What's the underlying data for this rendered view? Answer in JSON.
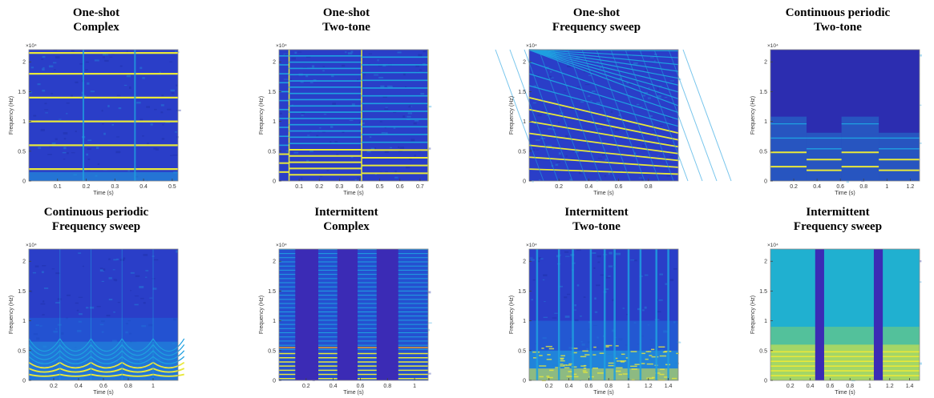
{
  "chart_data": [
    {
      "type": "heatmap",
      "title_lines": [
        "One-shot",
        "Complex"
      ],
      "xlabel": "Time (s)",
      "ylabel": "Frequency (Hz)",
      "y_exponent": "×10⁴",
      "xlim": [
        0,
        0.52
      ],
      "ylim": [
        0,
        22050
      ],
      "x_ticks": [
        0.1,
        0.2,
        0.3,
        0.4,
        0.5
      ],
      "x_tick_labels": [
        "0.1",
        "0.2",
        "0.3",
        "0.4",
        "0.5"
      ],
      "y_ticks": [
        0,
        5000,
        10000,
        15000,
        20000
      ],
      "y_tick_labels": [
        "0",
        "0.5",
        "1",
        "1.5",
        "2"
      ],
      "pattern": "harmonics",
      "harmonics_hz": [
        2000,
        6000,
        10000,
        14000,
        18000,
        21500
      ],
      "onsets_s": [
        0.19,
        0.37
      ]
    },
    {
      "type": "heatmap",
      "title_lines": [
        "One-shot",
        "Two-tone"
      ],
      "xlabel": "Time (s)",
      "ylabel": "Frequency (Hz)",
      "y_exponent": "×10⁴",
      "xlim": [
        0,
        0.74
      ],
      "ylim": [
        0,
        22050
      ],
      "x_ticks": [
        0.1,
        0.2,
        0.3,
        0.4,
        0.5,
        0.6,
        0.7
      ],
      "x_tick_labels": [
        "0.1",
        "0.2",
        "0.3",
        "0.4",
        "0.5",
        "0.6",
        "0.7"
      ],
      "y_ticks": [
        0,
        5000,
        10000,
        15000,
        20000
      ],
      "y_tick_labels": [
        "0",
        "0.5",
        "1",
        "1.5",
        "2"
      ],
      "pattern": "twotone",
      "segment_bounds_s": [
        0,
        0.05,
        0.41,
        0.74
      ],
      "fundamentals_hz": [
        1500,
        1050,
        1300
      ]
    },
    {
      "type": "heatmap",
      "title_lines": [
        "One-shot",
        "Frequency sweep"
      ],
      "xlabel": "Time (s)",
      "ylabel": "Frequency (Hz)",
      "y_exponent": "×10⁴",
      "xlim": [
        0,
        1.0
      ],
      "ylim": [
        0,
        22050
      ],
      "x_ticks": [
        0.2,
        0.4,
        0.6,
        0.8
      ],
      "x_tick_labels": [
        "0.2",
        "0.4",
        "0.6",
        "0.8"
      ],
      "y_ticks": [
        0,
        5000,
        10000,
        15000,
        20000
      ],
      "y_tick_labels": [
        "0",
        "0.5",
        "1",
        "1.5",
        "2"
      ],
      "pattern": "sweep",
      "sweep_fundamental_hz": [
        2000,
        1150
      ]
    },
    {
      "type": "heatmap",
      "title_lines": [
        "Continuous periodic",
        "Two-tone"
      ],
      "xlabel": "Time (s)",
      "ylabel": "Frequency (Hz)",
      "y_exponent": "×10⁴",
      "xlim": [
        0,
        1.28
      ],
      "ylim": [
        0,
        22050
      ],
      "x_ticks": [
        0.2,
        0.4,
        0.6,
        0.8,
        1,
        1.2
      ],
      "x_tick_labels": [
        "0.2",
        "0.4",
        "0.6",
        "0.8",
        "1",
        "1.2"
      ],
      "y_ticks": [
        0,
        5000,
        10000,
        15000,
        20000
      ],
      "y_tick_labels": [
        "0",
        "0.5",
        "1",
        "1.5",
        "2"
      ],
      "pattern": "periodic-twotone",
      "segment_bounds_s": [
        0,
        0.31,
        0.61,
        0.93,
        1.28
      ],
      "fundamentals_hz": [
        2400,
        1800,
        2400,
        1800
      ]
    },
    {
      "type": "heatmap",
      "title_lines": [
        "Continuous periodic",
        "Frequency sweep"
      ],
      "xlabel": "Time (s)",
      "ylabel": "Frequency (Hz)",
      "y_exponent": "×10⁴",
      "xlim": [
        0,
        1.2
      ],
      "ylim": [
        0,
        22050
      ],
      "x_ticks": [
        0.2,
        0.4,
        0.6,
        0.8,
        1
      ],
      "x_tick_labels": [
        "0.2",
        "0.4",
        "0.6",
        "0.8",
        "1"
      ],
      "y_ticks": [
        0,
        5000,
        10000,
        15000,
        20000
      ],
      "y_tick_labels": [
        "0",
        "0.5",
        "1",
        "1.5",
        "2"
      ],
      "pattern": "periodic-sweep",
      "sweep_period_s": 0.25
    },
    {
      "type": "heatmap",
      "title_lines": [
        "Intermittent",
        "Complex"
      ],
      "xlabel": "Time (s)",
      "ylabel": "Frequency (Hz)",
      "y_exponent": "×10⁴",
      "xlim": [
        0,
        1.1
      ],
      "ylim": [
        0,
        22050
      ],
      "x_ticks": [
        0.2,
        0.4,
        0.6,
        0.8,
        1
      ],
      "x_tick_labels": [
        "0.2",
        "0.4",
        "0.6",
        "0.8",
        "1"
      ],
      "y_ticks": [
        0,
        5000,
        10000,
        15000,
        20000
      ],
      "y_tick_labels": [
        "0",
        "0.5",
        "1",
        "1.5",
        "2"
      ],
      "pattern": "intermittent",
      "on_intervals_s": [
        [
          0,
          0.12
        ],
        [
          0.29,
          0.43
        ],
        [
          0.58,
          0.72
        ],
        [
          0.88,
          1.1
        ]
      ]
    },
    {
      "type": "heatmap",
      "title_lines": [
        "Intermittent",
        "Two-tone"
      ],
      "xlabel": "Time (s)",
      "ylabel": "Frequency (Hz)",
      "y_exponent": "×10⁴",
      "xlim": [
        0,
        1.5
      ],
      "ylim": [
        0,
        22050
      ],
      "x_ticks": [
        0.2,
        0.4,
        0.6,
        0.8,
        1,
        1.2,
        1.4
      ],
      "x_tick_labels": [
        "0.2",
        "0.4",
        "0.6",
        "0.8",
        "1",
        "1.2",
        "1.4"
      ],
      "y_ticks": [
        0,
        5000,
        10000,
        15000,
        20000
      ],
      "y_tick_labels": [
        "0",
        "0.5",
        "1",
        "1.5",
        "2"
      ],
      "pattern": "noisy-onsets",
      "onsets_s": [
        0.08,
        0.3,
        0.44,
        0.62,
        0.76,
        0.86,
        1.0,
        1.12,
        1.28,
        1.4
      ]
    },
    {
      "type": "heatmap",
      "title_lines": [
        "Intermittent",
        "Frequency sweep"
      ],
      "xlabel": "Time (s)",
      "ylabel": "Frequency (Hz)",
      "y_exponent": "×10⁴",
      "xlim": [
        0,
        1.5
      ],
      "ylim": [
        0,
        22050
      ],
      "x_ticks": [
        0.2,
        0.4,
        0.6,
        0.8,
        1,
        1.2,
        1.4
      ],
      "x_tick_labels": [
        "0.2",
        "0.4",
        "0.6",
        "0.8",
        "1",
        "1.2",
        "1.4"
      ],
      "y_ticks": [
        0,
        5000,
        10000,
        15000,
        20000
      ],
      "y_tick_labels": [
        "0",
        "0.5",
        "1",
        "1.5",
        "2"
      ],
      "pattern": "gapped-sweep",
      "gaps_s": [
        [
          0.45,
          0.54
        ],
        [
          1.04,
          1.13
        ]
      ]
    }
  ],
  "colors": {
    "background": "#2a3ec8",
    "mid": "#1fa0e0",
    "line": "#e8e83a",
    "hot": "#f0a020",
    "silence": "#3b2bb5"
  }
}
